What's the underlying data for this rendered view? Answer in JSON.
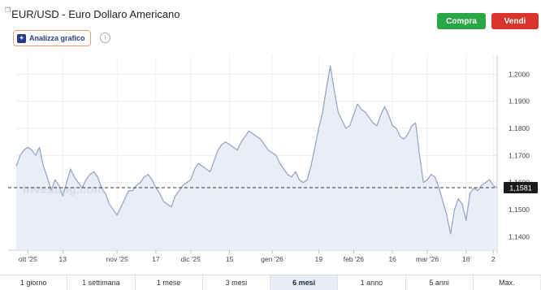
{
  "header": {
    "title_prefix": "❐",
    "title": "EUR/USD - Euro Dollaro Americano",
    "analyze_label": "Analizza grafico",
    "analyze_icon": "ai-chart-icon",
    "info_icon": "info-icon",
    "buy_label": "Compra",
    "sell_label": "Vendi",
    "buy_color": "#29a745",
    "sell_color": "#d9342b"
  },
  "chart_data": {
    "type": "area",
    "watermark": "Investing.com",
    "current_value": "1,1581",
    "current_numeric": 1.1581,
    "ylim": [
      1.135,
      1.207
    ],
    "yticks": [
      {
        "v": 1.14,
        "label": "1,1400"
      },
      {
        "v": 1.15,
        "label": "1,1500"
      },
      {
        "v": 1.16,
        "label": "1,1600"
      },
      {
        "v": 1.17,
        "label": "1,1700"
      },
      {
        "v": 1.18,
        "label": "1,1800"
      },
      {
        "v": 1.19,
        "label": "1,1900"
      },
      {
        "v": 1.2,
        "label": "1,2000"
      }
    ],
    "xlim": [
      0,
      124
    ],
    "xticks": [
      {
        "i": 3,
        "label": "ott '25"
      },
      {
        "i": 12,
        "label": "13"
      },
      {
        "i": 26,
        "label": "nov '25"
      },
      {
        "i": 36,
        "label": "17"
      },
      {
        "i": 45,
        "label": "dic '25"
      },
      {
        "i": 55,
        "label": "15"
      },
      {
        "i": 66,
        "label": "gen '26"
      },
      {
        "i": 78,
        "label": "19"
      },
      {
        "i": 87,
        "label": "feb '26"
      },
      {
        "i": 97,
        "label": "16"
      },
      {
        "i": 106,
        "label": "mar '26"
      },
      {
        "i": 116,
        "label": "16"
      },
      {
        "i": 123,
        "label": "2"
      }
    ],
    "values": [
      1.166,
      1.17,
      1.172,
      1.173,
      1.172,
      1.17,
      1.173,
      1.166,
      1.162,
      1.157,
      1.161,
      1.159,
      1.155,
      1.16,
      1.165,
      1.162,
      1.16,
      1.158,
      1.161,
      1.163,
      1.164,
      1.162,
      1.158,
      1.156,
      1.152,
      1.15,
      1.148,
      1.151,
      1.154,
      1.157,
      1.157,
      1.159,
      1.16,
      1.162,
      1.163,
      1.161,
      1.158,
      1.156,
      1.153,
      1.152,
      1.151,
      1.155,
      1.157,
      1.159,
      1.16,
      1.161,
      1.165,
      1.167,
      1.166,
      1.165,
      1.164,
      1.168,
      1.172,
      1.174,
      1.175,
      1.174,
      1.173,
      1.172,
      1.175,
      1.177,
      1.179,
      1.178,
      1.177,
      1.176,
      1.174,
      1.172,
      1.171,
      1.17,
      1.167,
      1.165,
      1.163,
      1.162,
      1.164,
      1.161,
      1.16,
      1.161,
      1.166,
      1.173,
      1.18,
      1.186,
      1.195,
      1.203,
      1.194,
      1.186,
      1.183,
      1.18,
      1.181,
      1.185,
      1.189,
      1.187,
      1.186,
      1.184,
      1.182,
      1.181,
      1.185,
      1.188,
      1.185,
      1.181,
      1.18,
      1.177,
      1.176,
      1.178,
      1.181,
      1.182,
      1.17,
      1.16,
      1.161,
      1.163,
      1.162,
      1.158,
      1.153,
      1.148,
      1.141,
      1.15,
      1.154,
      1.152,
      1.146,
      1.156,
      1.158,
      1.157,
      1.159,
      1.16,
      1.161,
      1.159,
      1.158
    ],
    "line_color": "#9aa6c4",
    "fill_color": "#e9edf7"
  },
  "periods": [
    {
      "label": "1 giorno",
      "active": false
    },
    {
      "label": "1 settimana",
      "active": false
    },
    {
      "label": "1 mese",
      "active": false
    },
    {
      "label": "3 mesi",
      "active": false
    },
    {
      "label": "6 mesi",
      "active": true
    },
    {
      "label": "1 anno",
      "active": false
    },
    {
      "label": "5 anni",
      "active": false
    },
    {
      "label": "Max.",
      "active": false
    }
  ]
}
